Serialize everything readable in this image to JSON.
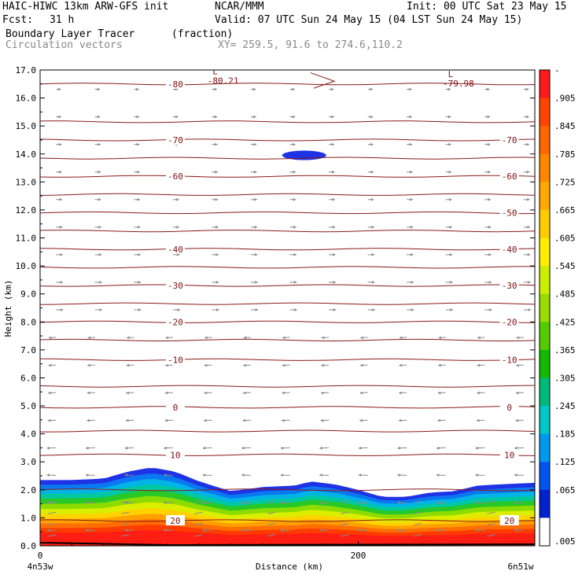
{
  "header": {
    "model": "HAIC-HIWC 13km ARW-GFS init",
    "org": "NCAR/MMM",
    "init": "Init: 00 UTC Sat 23 May 15",
    "fcst_label": "Fcst:",
    "fcst_value": "31 h",
    "valid": "Valid: 07 UTC Sun 24 May 15 (04 LST Sun 24 May 15)",
    "field": "Boundary Layer Tracer",
    "units": "(fraction)",
    "vectors": "Circulation vectors",
    "xy": "XY= 259.5, 91.6 to 274.6,110.2"
  },
  "chart_data": {
    "type": "heatmap",
    "ylabel": "Height (km)",
    "xlabel": "Distance (km)",
    "x_left_label": "4n53w",
    "x_right_label": "6n51w",
    "xlim": [
      0,
      311
    ],
    "ylim": [
      0,
      17
    ],
    "x_ticks": [
      0,
      200
    ],
    "y_ticks": [
      "0.0",
      "1.0",
      "2.0",
      "3.0",
      "4.0",
      "5.0",
      "6.0",
      "7.0",
      "8.0",
      "9.0",
      "10.0",
      "11.0",
      "12.0",
      "13.0",
      "14.0",
      "15.0",
      "16.0",
      "17.0"
    ],
    "colorbar_labels": [
      "-",
      ".905",
      ".845",
      ".785",
      ".725",
      ".665",
      ".605",
      ".545",
      ".485",
      ".425",
      ".365",
      ".305",
      ".245",
      ".185",
      ".125",
      ".065",
      ".005"
    ],
    "colorbar_colors": [
      "#ff1a1a",
      "#ff4400",
      "#ff6600",
      "#ff8800",
      "#ffaa00",
      "#ffcc00",
      "#ffee00",
      "#ccee00",
      "#99dd00",
      "#55cc00",
      "#11bb00",
      "#00bb77",
      "#00c8c8",
      "#0099ee",
      "#0055ee",
      "#0022cc",
      "#ffffff"
    ],
    "tracer_top_profile": {
      "x": [
        0,
        20,
        40,
        55,
        70,
        85,
        100,
        120,
        140,
        160,
        170,
        185,
        200,
        215,
        230,
        245,
        260,
        275,
        290,
        311
      ],
      "top_km": [
        2.35,
        2.35,
        2.4,
        2.65,
        2.8,
        2.65,
        2.3,
        1.95,
        2.1,
        2.15,
        2.3,
        2.2,
        2.0,
        1.75,
        1.75,
        1.9,
        1.95,
        2.15,
        2.2,
        2.25
      ]
    },
    "isotherms": [
      {
        "y_km": 16.5,
        "label": "-80",
        "label_x": [
          85
        ]
      },
      {
        "y_km": 15.15,
        "label": "",
        "label_x": []
      },
      {
        "y_km": 14.5,
        "label": "-70",
        "label_x": [
          85,
          295
        ]
      },
      {
        "y_km": 13.85,
        "label": "",
        "label_x": []
      },
      {
        "y_km": 13.2,
        "label": "-60",
        "label_x": [
          85,
          295
        ]
      },
      {
        "y_km": 12.55,
        "label": "",
        "label_x": []
      },
      {
        "y_km": 11.9,
        "label": "-50",
        "label_x": [
          295
        ]
      },
      {
        "y_km": 11.25,
        "label": "",
        "label_x": []
      },
      {
        "y_km": 10.6,
        "label": "-40",
        "label_x": [
          85,
          295
        ]
      },
      {
        "y_km": 9.95,
        "label": "",
        "label_x": []
      },
      {
        "y_km": 9.3,
        "label": "-30",
        "label_x": [
          85,
          295
        ]
      },
      {
        "y_km": 8.65,
        "label": "",
        "label_x": []
      },
      {
        "y_km": 8.0,
        "label": "-20",
        "label_x": [
          85,
          295
        ]
      },
      {
        "y_km": 7.35,
        "label": "",
        "label_x": []
      },
      {
        "y_km": 6.65,
        "label": "-10",
        "label_x": [
          85,
          295
        ]
      },
      {
        "y_km": 5.7,
        "label": "",
        "label_x": []
      },
      {
        "y_km": 4.95,
        "label": "0",
        "label_x": [
          85,
          295
        ]
      },
      {
        "y_km": 4.1,
        "label": "",
        "label_x": []
      },
      {
        "y_km": 3.25,
        "label": "10",
        "label_x": [
          85,
          295
        ]
      },
      {
        "y_km": 2.0,
        "label": "",
        "label_x": []
      },
      {
        "y_km": 0.9,
        "label": "20",
        "label_x": [
          85,
          295
        ]
      }
    ],
    "lows": [
      {
        "x": 115,
        "y_km": 16.85,
        "mark": "L",
        "value": "-80.21"
      },
      {
        "x": 263,
        "y_km": 16.75,
        "mark": "L",
        "value": "-79.98"
      }
    ],
    "blob": {
      "x_center": 166,
      "y_km": 13.95
    },
    "colors": {
      "contour": "#8b1a1a",
      "vector": "#8a8a8a",
      "axis": "#000000"
    }
  }
}
